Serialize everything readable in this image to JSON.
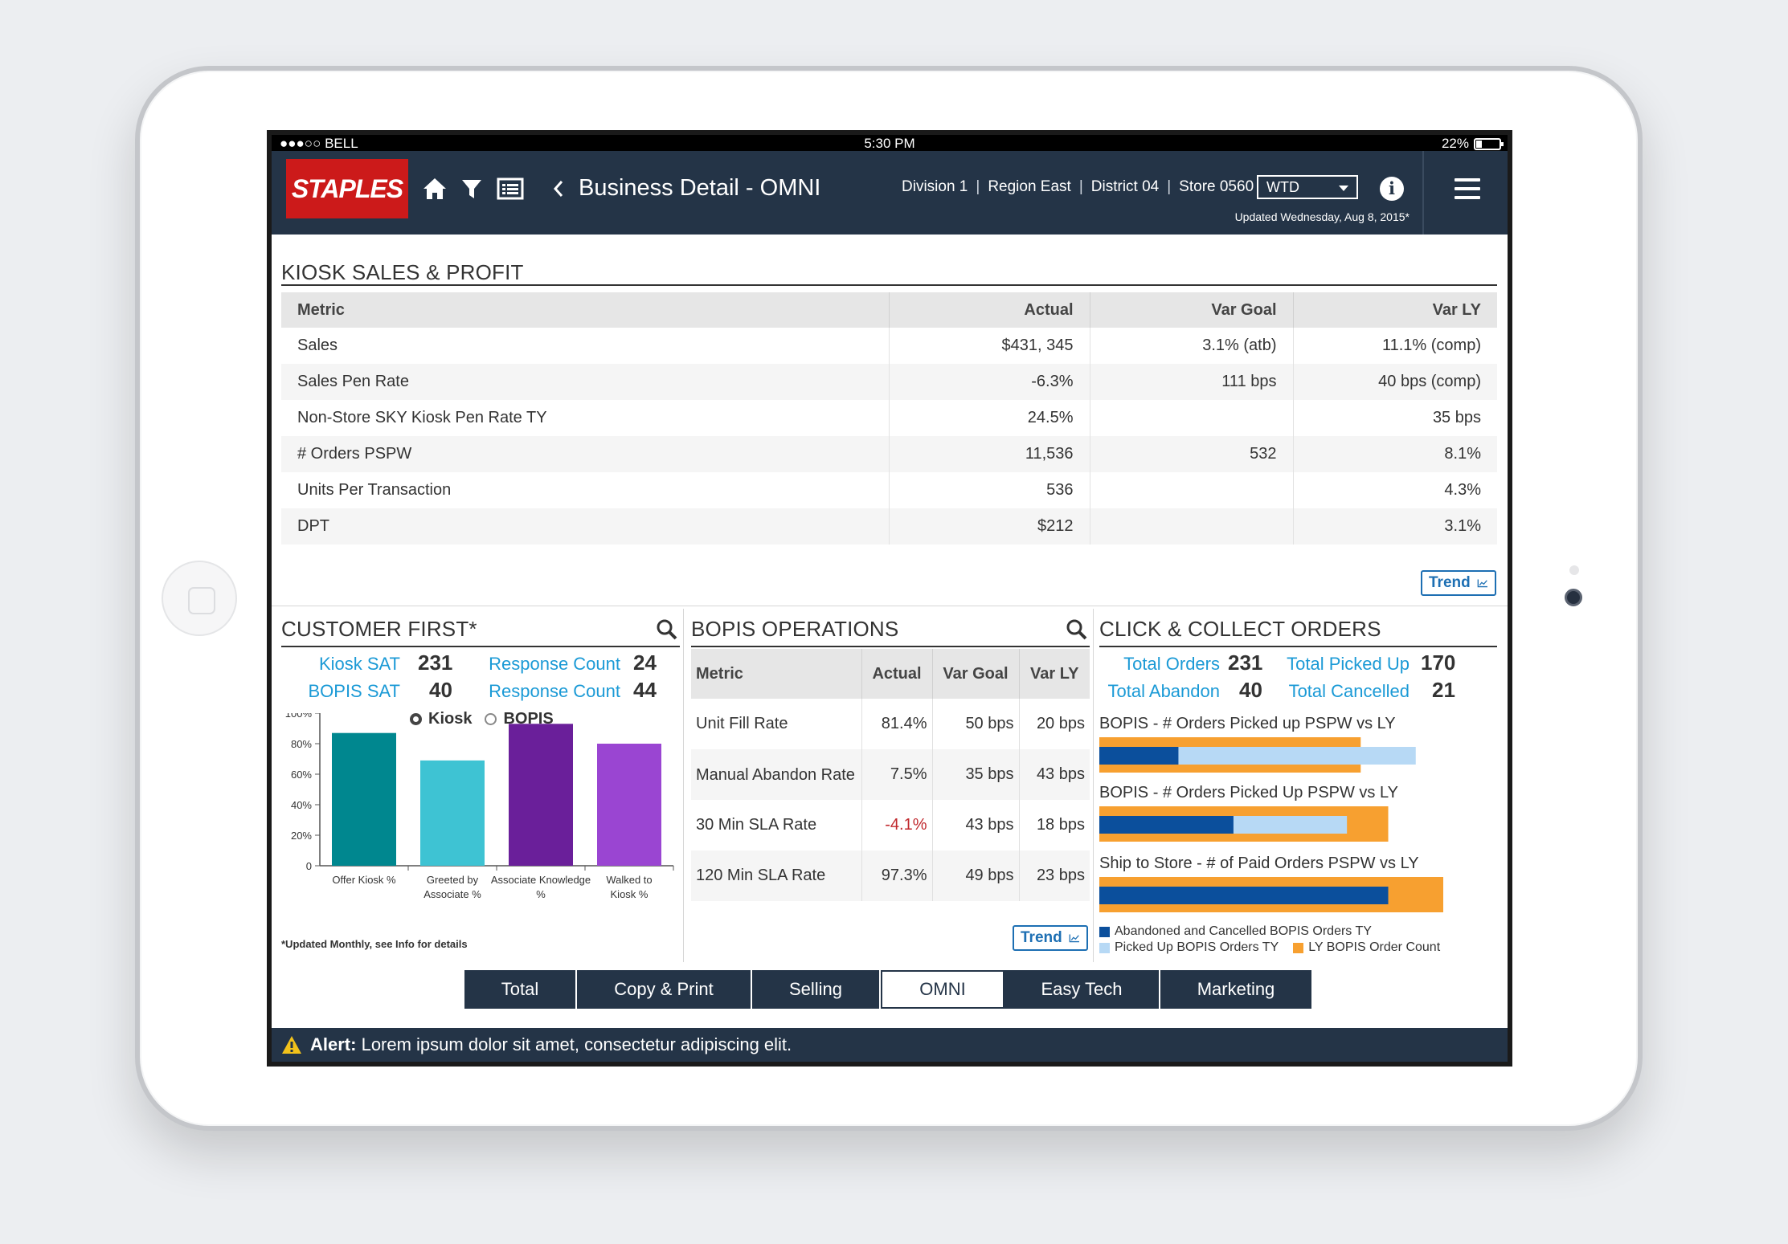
{
  "status": {
    "carrier": "●●●○○ BELL",
    "time": "5:30 PM",
    "battery": "22%"
  },
  "header": {
    "logo": "STAPLES",
    "title": "Business Detail - OMNI",
    "crumbs": [
      "Division 1",
      "Region East",
      "District 04",
      "Store 0560"
    ],
    "period": "WTD",
    "updated": "Updated Wednesday, Aug 8, 2015*"
  },
  "kiosk": {
    "title": "KIOSK SALES & PROFIT",
    "columns": [
      "Metric",
      "Actual",
      "Var Goal",
      "Var LY"
    ],
    "rows": [
      [
        "Sales",
        "$431, 345",
        "3.1% (atb)",
        "11.1% (comp)"
      ],
      [
        "Sales Pen Rate",
        "-6.3%",
        "111 bps",
        "40 bps (comp)"
      ],
      [
        "Non-Store SKY Kiosk Pen Rate TY",
        "24.5%",
        "",
        "35 bps"
      ],
      [
        "# Orders PSPW",
        "11,536",
        "532",
        "8.1%"
      ],
      [
        "Units Per Transaction",
        "536",
        "",
        "4.3%"
      ],
      [
        "DPT",
        "$212",
        "",
        "3.1%"
      ]
    ],
    "trend": "Trend"
  },
  "customer": {
    "title": "CUSTOMER FIRST*",
    "kiosk_sat_label": "Kiosk SAT",
    "kiosk_sat": "231",
    "bopis_sat_label": "BOPIS SAT",
    "bopis_sat": "40",
    "resp1_label": "Response Count",
    "resp1": "24",
    "resp2_label": "Response Count",
    "resp2": "44",
    "radio_kiosk": "Kiosk",
    "radio_bopis": "BOPIS",
    "footnote": "*Updated Monthly, see Info for details"
  },
  "chart_data": {
    "type": "bar",
    "categories": [
      "Offer Kiosk %",
      "Greeted by Associate %",
      "Associate Knowledge %",
      "Walked to Kiosk %"
    ],
    "values": [
      87,
      69,
      93,
      80
    ],
    "colors": [
      "#00878f",
      "#3ec3d3",
      "#6a1f9a",
      "#9a45d2"
    ],
    "ylim": [
      0,
      100
    ],
    "yticks": [
      "0",
      "20%",
      "40%",
      "60%",
      "80%",
      "100%"
    ]
  },
  "bopis": {
    "title": "BOPIS OPERATIONS",
    "columns": [
      "Metric",
      "Actual",
      "Var Goal",
      "Var LY"
    ],
    "rows": [
      [
        "Unit Fill Rate",
        "81.4%",
        "50 bps",
        "20 bps"
      ],
      [
        "Manual Abandon Rate",
        "7.5%",
        "35 bps",
        "43 bps"
      ],
      [
        "30 Min SLA Rate",
        "-4.1%",
        "43 bps",
        "18 bps"
      ],
      [
        "120 Min SLA Rate",
        "97.3%",
        "49 bps",
        "23 bps"
      ]
    ],
    "trend": "Trend"
  },
  "click": {
    "title": "CLICK & COLLECT ORDERS",
    "total_orders_label": "Total Orders",
    "total_orders": "231",
    "total_abandon_label": "Total Abandon",
    "total_abandon": "40",
    "picked_up_label": "Total Picked Up",
    "picked_up": "170",
    "cancelled_label": "Total Cancelled",
    "cancelled": "21",
    "bars": [
      {
        "title": "BOPIS - # Orders Picked up PSPW vs LY",
        "ly": 0.76,
        "picked": 0.92,
        "abandon": 0.23
      },
      {
        "title": "BOPIS - # Orders Picked Up PSPW vs LY",
        "ly": 0.84,
        "picked": 0.72,
        "abandon": 0.39
      },
      {
        "title": "Ship to Store - # of Paid Orders PSPW vs LY",
        "ly": 1.0,
        "picked": 0.0,
        "abandon": 0.84
      }
    ],
    "legend": {
      "abandoned": "Abandoned and Cancelled BOPIS Orders TY",
      "picked": "Picked Up BOPIS Orders TY",
      "ly": "LY BOPIS Order Count"
    },
    "colors": {
      "abandoned": "#0b4f9c",
      "picked": "#b7d9f5",
      "ly": "#f7a030"
    }
  },
  "tabs": [
    "Total",
    "Copy & Print",
    "Selling",
    "OMNI",
    "Easy Tech",
    "Marketing"
  ],
  "active_tab": "OMNI",
  "alert": {
    "label": "Alert:",
    "text": "Lorem ipsum dolor sit amet, consectetur adipiscing elit."
  }
}
